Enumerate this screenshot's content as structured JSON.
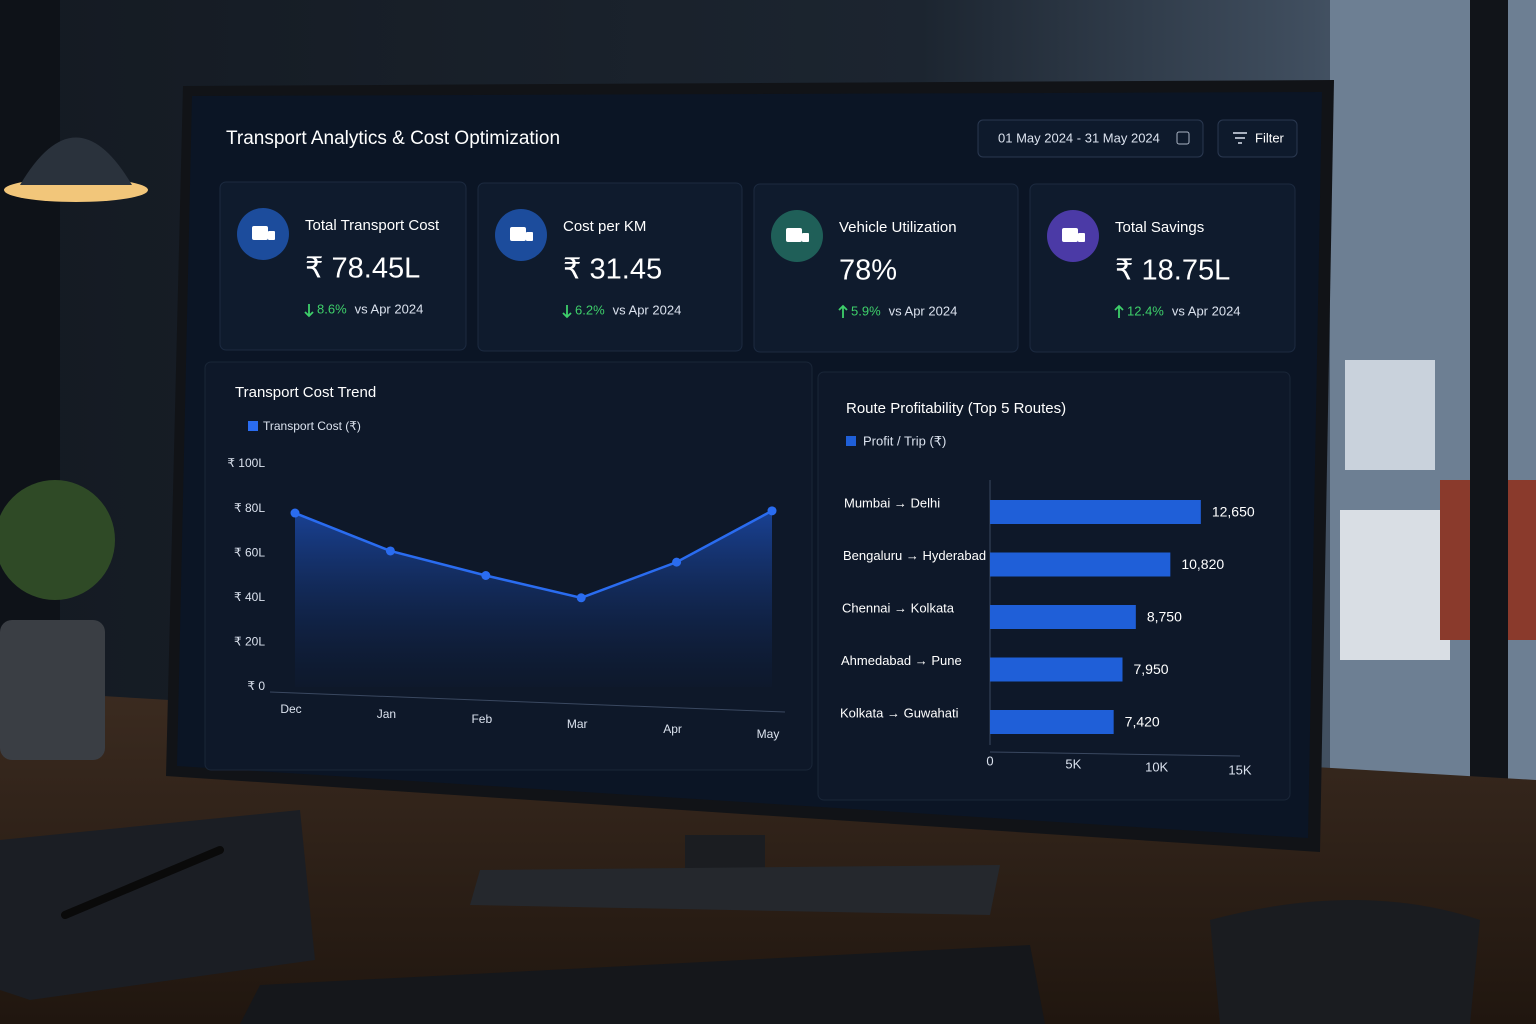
{
  "header": {
    "title": "Transport Analytics & Cost Optimization",
    "date_range": "01 May 2024 - 31 May 2024",
    "filter": "Filter"
  },
  "kpis": [
    {
      "title": "Total Transport Cost",
      "value": "₹ 78.45L",
      "change": "8.6%",
      "direction": "down",
      "compare": "vs Apr 2024",
      "color": "#1c4c9c"
    },
    {
      "title": "Cost per KM",
      "value": "₹ 31.45",
      "change": "6.2%",
      "direction": "down",
      "compare": "vs Apr 2024",
      "color": "#1c4c9c"
    },
    {
      "title": "Vehicle Utilization",
      "value": "78%",
      "change": "5.9%",
      "direction": "up",
      "compare": "vs Apr 2024",
      "color": "#1f5f58"
    },
    {
      "title": "Total Savings",
      "value": "₹ 18.75L",
      "change": "12.4%",
      "direction": "up",
      "compare": "vs Apr 2024",
      "color": "#4b3aa6"
    }
  ],
  "chart_data": [
    {
      "type": "line",
      "title": "Transport Cost Trend",
      "categories": [
        "Dec",
        "Jan",
        "Feb",
        "Mar",
        "Apr",
        "May"
      ],
      "series": [
        {
          "name": "Transport Cost (₹)",
          "color": "#2a6cf0",
          "values": [
            78,
            61,
            50,
            40,
            56,
            79
          ]
        }
      ],
      "ylim": [
        0,
        100
      ],
      "yticks": [
        {
          "value": 0,
          "label": "₹ 0"
        },
        {
          "value": 20,
          "label": "₹ 20L"
        },
        {
          "value": 40,
          "label": "₹ 40L"
        },
        {
          "value": 60,
          "label": "₹ 60L"
        },
        {
          "value": 80,
          "label": "₹ 80L"
        },
        {
          "value": 100,
          "label": "₹ 100L"
        }
      ],
      "grid": false
    },
    {
      "type": "hbar",
      "title": "Route Profitability (Top 5 Routes)",
      "categories": [
        "Mumbai → Delhi",
        "Bengaluru → Hyderabad",
        "Chennai → Kolkata",
        "Ahmedabad → Pune",
        "Kolkata → Guwahati"
      ],
      "series": [
        {
          "name": "Profit / Trip (₹)",
          "color": "#1f5fd8",
          "values": [
            12650,
            10820,
            8750,
            7950,
            7420
          ],
          "value_labels": [
            "12,650",
            "10,820",
            "8,750",
            "7,950",
            "7,420"
          ]
        }
      ],
      "xlim": [
        0,
        15000
      ],
      "xticks": [
        0,
        {
          "value": 5000,
          "label": "5K"
        },
        {
          "value": 10000,
          "label": "10K"
        },
        {
          "value": 15000,
          "label": "15K"
        }
      ],
      "grid": false
    }
  ]
}
